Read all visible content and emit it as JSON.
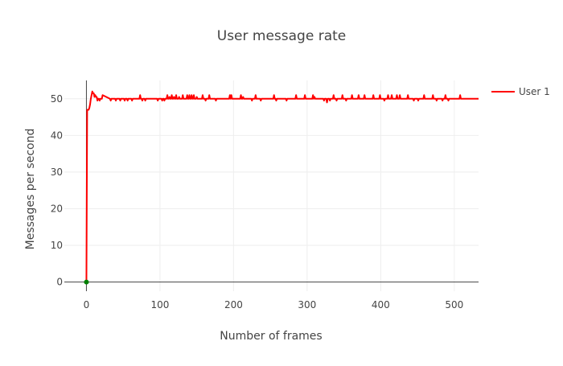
{
  "chart_data": {
    "type": "line",
    "title": "User message rate",
    "xlabel": "Number of frames",
    "ylabel": "Messages per second",
    "xlim": [
      -30,
      533
    ],
    "ylim": [
      -2.5,
      55
    ],
    "xticks": [
      0,
      100,
      200,
      300,
      400,
      500
    ],
    "yticks": [
      0,
      10,
      20,
      30,
      40,
      50
    ],
    "grid": true,
    "legend_position": "top-right",
    "series": [
      {
        "name": "User 1",
        "color": "#ff0000",
        "baseline": 50,
        "x": [
          0,
          1,
          2,
          3,
          4,
          5,
          6,
          7,
          8,
          9,
          10,
          11,
          12,
          13,
          14,
          15,
          16,
          17,
          18,
          19,
          20,
          21,
          22
        ],
        "y": [
          0,
          47,
          47,
          47,
          47.5,
          48.5,
          50,
          51,
          52,
          51.5,
          51.5,
          50.5,
          51,
          50.5,
          50.5,
          49.5,
          50,
          50,
          49.5,
          50,
          50,
          50,
          51
        ],
        "spikes": [
          [
            33,
            49.5
          ],
          [
            40,
            49.5
          ],
          [
            46,
            49.5
          ],
          [
            52,
            49.5
          ],
          [
            56,
            49.5
          ],
          [
            62,
            49.5
          ],
          [
            73,
            51
          ],
          [
            76,
            49.5
          ],
          [
            80,
            49.5
          ],
          [
            97,
            49.5
          ],
          [
            103,
            49.5
          ],
          [
            106,
            49.5
          ],
          [
            110,
            51
          ],
          [
            113,
            50.5
          ],
          [
            116,
            51
          ],
          [
            119,
            50.5
          ],
          [
            122,
            51
          ],
          [
            126,
            50.5
          ],
          [
            131,
            51
          ],
          [
            137,
            51
          ],
          [
            140,
            51
          ],
          [
            143,
            51
          ],
          [
            146,
            51
          ],
          [
            150,
            50.5
          ],
          [
            158,
            51
          ],
          [
            162,
            49.5
          ],
          [
            167,
            51
          ],
          [
            176,
            49.5
          ],
          [
            195,
            51
          ],
          [
            197,
            51
          ],
          [
            210,
            51
          ],
          [
            213,
            50.5
          ],
          [
            225,
            49.5
          ],
          [
            230,
            51
          ],
          [
            237,
            49.5
          ],
          [
            255,
            51
          ],
          [
            258,
            49.5
          ],
          [
            272,
            49.5
          ],
          [
            285,
            51
          ],
          [
            297,
            51
          ],
          [
            308,
            51
          ],
          [
            310,
            50.5
          ],
          [
            323,
            49.5
          ],
          [
            327,
            49
          ],
          [
            331,
            49.5
          ],
          [
            336,
            51
          ],
          [
            340,
            49.5
          ],
          [
            348,
            51
          ],
          [
            353,
            49.5
          ],
          [
            361,
            51
          ],
          [
            370,
            51
          ],
          [
            378,
            51
          ],
          [
            390,
            51
          ],
          [
            399,
            51
          ],
          [
            405,
            49.5
          ],
          [
            410,
            51
          ],
          [
            415,
            51
          ],
          [
            422,
            51
          ],
          [
            426,
            51
          ],
          [
            437,
            51
          ],
          [
            445,
            49.5
          ],
          [
            451,
            49.5
          ],
          [
            459,
            51
          ],
          [
            471,
            51
          ],
          [
            476,
            49.5
          ],
          [
            484,
            49.5
          ],
          [
            488,
            51
          ],
          [
            492,
            49.5
          ],
          [
            508,
            51
          ]
        ],
        "x_end": 533
      },
      {
        "color": "#008000",
        "x": [
          0
        ],
        "y": [
          0
        ]
      }
    ]
  }
}
